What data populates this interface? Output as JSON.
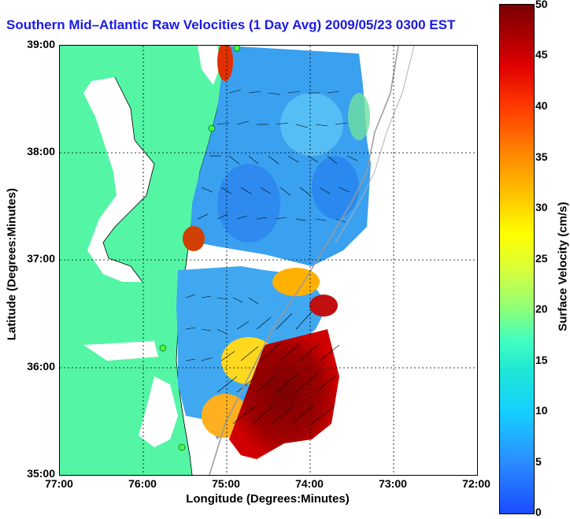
{
  "title": "Southern Mid–Atlantic Raw Velocities (1 Day Avg) 2009/05/23 0300 EST",
  "axes": {
    "xlabel": "Longitude (Degrees:Minutes)",
    "ylabel": "Latitude (Degrees:Minutes)",
    "x_ticks": [
      "77:00",
      "76:00",
      "75:00",
      "74:00",
      "73:00",
      "72:00"
    ],
    "y_ticks": [
      "39:00",
      "38:00",
      "37:00",
      "36:00",
      "35:00"
    ]
  },
  "colorbar": {
    "label": "Surface Velocity (cm/s)",
    "ticks": [
      "50",
      "45",
      "40",
      "35",
      "30",
      "25",
      "20",
      "15",
      "10",
      "5",
      "0"
    ],
    "range": [
      0,
      50
    ]
  },
  "colors": {
    "land": "#55f5a6",
    "title": "#1a1ae6",
    "grid": "#000000"
  }
}
